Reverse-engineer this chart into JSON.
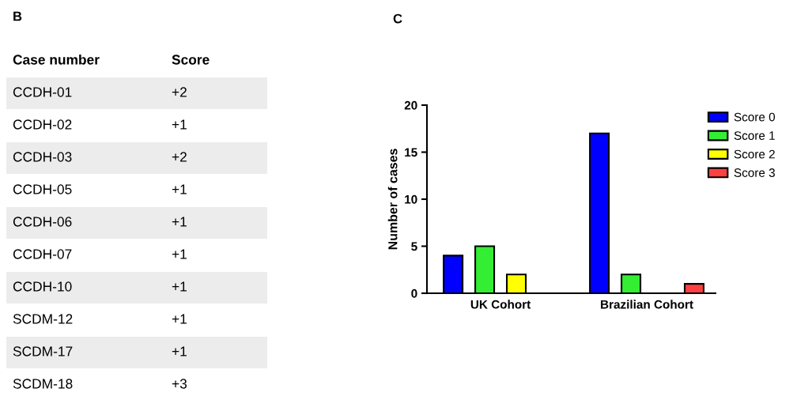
{
  "chart_data": [
    {
      "type": "other",
      "title": "B",
      "annotations": [
        "Case number",
        "Score",
        "CCDH-01",
        "+2",
        "CCDH-02",
        "+1",
        "CCDH-03",
        "+2",
        "CCDH-05",
        "+1",
        "CCDH-06",
        "+1",
        "CCDH-07",
        "+1",
        "CCDH-10",
        "+1",
        "SCDM-12",
        "+1",
        "SCDM-17",
        "+1",
        "SCDM-18",
        "+3"
      ]
    },
    {
      "type": "bar",
      "title": "C",
      "ylabel": "Number of cases",
      "categories": [
        "UK Cohort",
        "Brazilian Cohort"
      ],
      "series": [
        {
          "name": "Score 0",
          "color": "#0000ff",
          "values": [
            4,
            17
          ]
        },
        {
          "name": "Score 1",
          "color": "#33ee33",
          "values": [
            5,
            2
          ]
        },
        {
          "name": "Score 2",
          "color": "#ffff00",
          "values": [
            2,
            null
          ]
        },
        {
          "name": "Score 3",
          "color": "#ff4040",
          "values": [
            null,
            1
          ]
        }
      ],
      "ylim": [
        0,
        20
      ],
      "yticks": [
        0,
        5,
        10,
        15,
        20
      ],
      "grid": false,
      "legend": "right"
    }
  ]
}
